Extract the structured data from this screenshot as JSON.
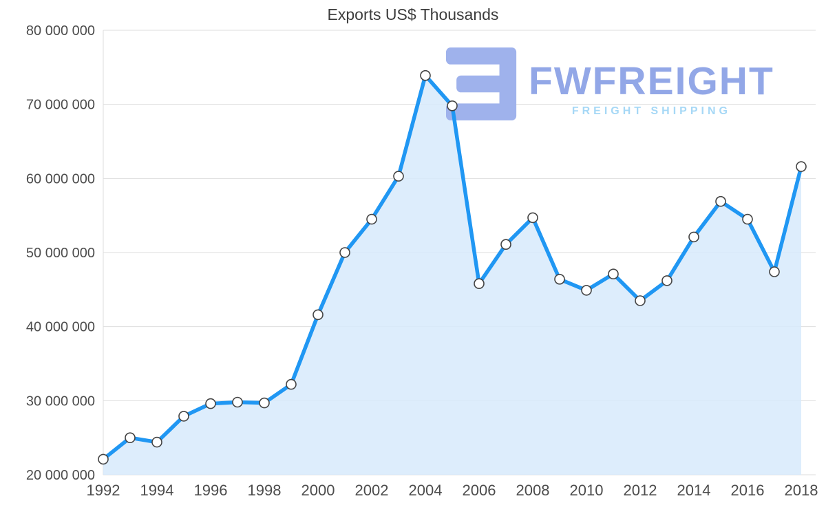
{
  "chart_data": {
    "type": "line",
    "variant": "area-line-with-markers",
    "title": "Exports US$ Thousands",
    "x": [
      1992,
      1993,
      1994,
      1995,
      1996,
      1997,
      1998,
      1999,
      2000,
      2001,
      2002,
      2003,
      2004,
      2005,
      2006,
      2007,
      2008,
      2009,
      2010,
      2011,
      2012,
      2013,
      2014,
      2015,
      2016,
      2017,
      2018
    ],
    "values": [
      22100000,
      25000000,
      24400000,
      27900000,
      29600000,
      29800000,
      29700000,
      32200000,
      41600000,
      50000000,
      54500000,
      60300000,
      73900000,
      69800000,
      45800000,
      51100000,
      54700000,
      46400000,
      44900000,
      47100000,
      43500000,
      46200000,
      52100000,
      56900000,
      54500000,
      47400000,
      61600000
    ],
    "ylim": [
      20000000,
      80000000
    ],
    "ytick_values": [
      20000000,
      30000000,
      40000000,
      50000000,
      60000000,
      70000000,
      80000000
    ],
    "ytick_labels": [
      "20 000 000",
      "30 000 000",
      "40 000 000",
      "50 000 000",
      "60 000 000",
      "70 000 000",
      "80 000 000"
    ],
    "xtick_labels": [
      1992,
      1994,
      1996,
      1998,
      2000,
      2002,
      2004,
      2006,
      2008,
      2010,
      2012,
      2014,
      2016,
      2018
    ],
    "grid": "horizontal",
    "legend": "none",
    "line_color": "#2097f3",
    "fill_color": "#d7eafb",
    "fill_opacity": 0.85,
    "marker_fill": "#ffffff",
    "marker_stroke": "#444444",
    "grid_color": "#dedede",
    "axis_text_color": "#4c4c4c",
    "title_color": "#3c3c3c"
  },
  "watermark": {
    "brand": "FWFREIGHT",
    "tagline": "FREIGHT SHIPPING",
    "brand_color": "#92a7e7",
    "tagline_color": "#a6d8f6",
    "mark_color": "#9fb2ec"
  }
}
